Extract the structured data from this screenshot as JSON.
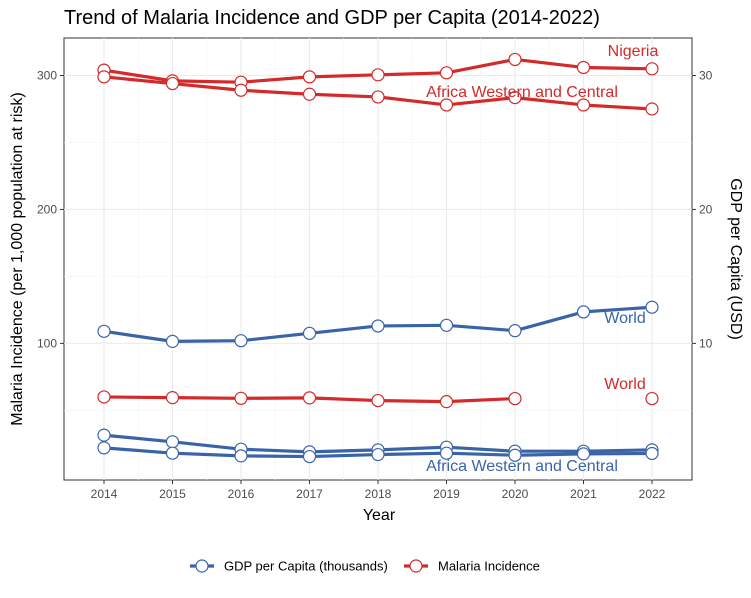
{
  "chart_data": {
    "type": "line",
    "title": "Trend of Malaria Incidence and GDP per Capita (2014-2022)",
    "xlabel": "Year",
    "ylabel_left": "Malaria Incidence (per 1,000 population at risk)",
    "ylabel_right": "GDP per Capita (USD)",
    "x": [
      2014,
      2015,
      2016,
      2017,
      2018,
      2019,
      2020,
      2021,
      2022
    ],
    "y_left_ticks": [
      100,
      200,
      300
    ],
    "y_right_ticks": [
      10,
      20,
      30
    ],
    "y_left_range": [
      -2,
      328
    ],
    "y_right_scale_factor": 10,
    "grid": true,
    "legend_position": "bottom",
    "legend": [
      {
        "label": "GDP per Capita (thousands)",
        "color": "#3a64a8"
      },
      {
        "label": "Malaria Incidence",
        "color": "#d42a2a"
      }
    ],
    "series": [
      {
        "name": "Nigeria",
        "kind": "Malaria Incidence",
        "color": "#d42a2a",
        "values": [
          304,
          296,
          295,
          299,
          300.5,
          302,
          312,
          306,
          305
        ]
      },
      {
        "name": "Africa Western and Central",
        "kind": "Malaria Incidence",
        "color": "#d42a2a",
        "values": [
          299,
          294,
          289,
          286,
          284,
          278,
          283.5,
          278,
          275
        ]
      },
      {
        "name": "World",
        "kind": "Malaria Incidence",
        "color": "#d42a2a",
        "values": [
          60,
          59.5,
          59,
          59.3,
          57.3,
          56.5,
          58.8,
          null,
          58.8
        ]
      },
      {
        "name": "World",
        "kind": "GDP per Capita (thousands)",
        "color": "#3a64a8",
        "values": [
          109,
          101.5,
          102,
          107.5,
          113,
          113.5,
          109.5,
          123.5,
          127
        ]
      },
      {
        "name": "Nigeria",
        "kind": "GDP per Capita (thousands)",
        "color": "#3a64a8",
        "values": [
          31.5,
          26.5,
          21,
          19,
          20.5,
          22.5,
          19.5,
          19.5,
          20.5
        ]
      },
      {
        "name": "Africa Western and Central",
        "kind": "GDP per Capita (thousands)",
        "color": "#3a64a8",
        "values": [
          22,
          18,
          16,
          15.5,
          17,
          18,
          16.5,
          17.5,
          17.8
        ]
      }
    ],
    "annotations": [
      {
        "text": "Nigeria",
        "color": "#d42a2a"
      },
      {
        "text": "Africa Western and Central",
        "color": "#d42a2a"
      },
      {
        "text": "World",
        "color": "#d42a2a"
      },
      {
        "text": "World",
        "color": "#3a64a8"
      },
      {
        "text": "Africa Western and Central",
        "color": "#3a64a8"
      }
    ]
  }
}
